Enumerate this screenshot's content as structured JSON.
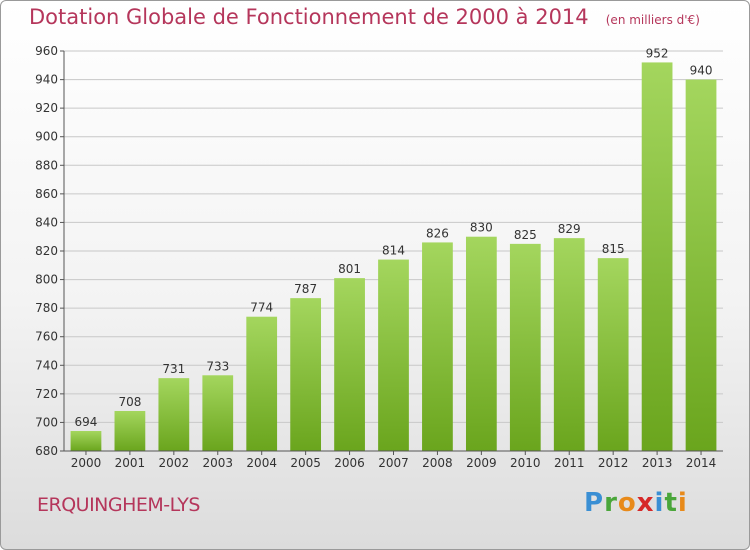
{
  "title": "Dotation Globale de Fonctionnement de 2000 à 2014",
  "unit": "(en milliers d'€)",
  "city": "ERQUINGHEM-LYS",
  "brand": {
    "letters": [
      {
        "char": "P",
        "color": "#3a8fd4"
      },
      {
        "char": "r",
        "color": "#4aa63a"
      },
      {
        "char": "o",
        "color": "#e88a1a"
      },
      {
        "char": "x",
        "color": "#d62828"
      },
      {
        "char": "i",
        "color": "#3a8fd4"
      },
      {
        "char": "t",
        "color": "#4aa63a"
      },
      {
        "char": "i",
        "color": "#e88a1a"
      }
    ]
  },
  "colors": {
    "bar_light": "#a4d65e",
    "bar_dark": "#6aa51d",
    "title": "#b5365b",
    "grid": "#c8c8c8"
  },
  "chart_data": {
    "type": "bar",
    "title": "Dotation Globale de Fonctionnement de 2000 à 2014",
    "subtitle": "(en milliers d'€)",
    "xlabel": "",
    "ylabel": "",
    "categories": [
      "2000",
      "2001",
      "2002",
      "2003",
      "2004",
      "2005",
      "2006",
      "2007",
      "2008",
      "2009",
      "2010",
      "2011",
      "2012",
      "2013",
      "2014"
    ],
    "values": [
      694,
      708,
      731,
      733,
      774,
      787,
      801,
      814,
      826,
      830,
      825,
      829,
      815,
      952,
      940
    ],
    "ylim": [
      680,
      960
    ],
    "yticks": [
      680,
      700,
      720,
      740,
      760,
      780,
      800,
      820,
      840,
      860,
      880,
      900,
      920,
      940,
      960
    ],
    "grid": true,
    "legend": "none"
  }
}
